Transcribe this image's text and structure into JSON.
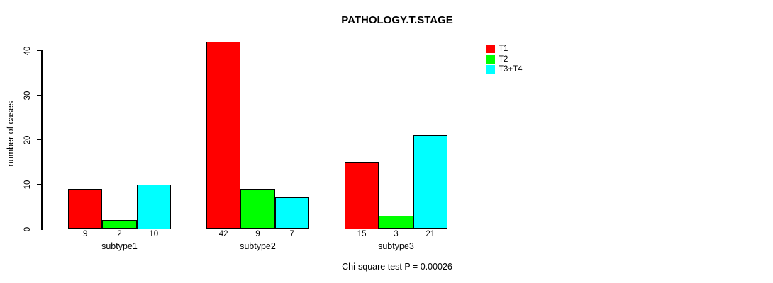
{
  "chart_data": {
    "type": "bar",
    "title": "PATHOLOGY.T.STAGE",
    "ylabel": "number of cases",
    "xlabel": "",
    "annotation": "Chi-square test P = 0.00026",
    "categories": [
      "subtype1",
      "subtype2",
      "subtype3"
    ],
    "series": [
      {
        "name": "T1",
        "color": "#FF0000",
        "values": [
          9,
          42,
          15
        ]
      },
      {
        "name": "T2",
        "color": "#00FF00",
        "values": [
          2,
          9,
          3
        ]
      },
      {
        "name": "T3+T4",
        "color": "#00FFFF",
        "values": [
          10,
          7,
          21
        ]
      }
    ],
    "bar_value_labels": [
      [
        "9",
        "2",
        "10"
      ],
      [
        "42",
        "9",
        "7"
      ],
      [
        "15",
        "3",
        "21"
      ]
    ],
    "yticks": [
      0,
      10,
      20,
      30,
      40
    ],
    "ylim": [
      0,
      42
    ],
    "grid": false,
    "legend_position": "top-right",
    "background_color": "#FFFFFF",
    "axis_color": "#000000"
  }
}
